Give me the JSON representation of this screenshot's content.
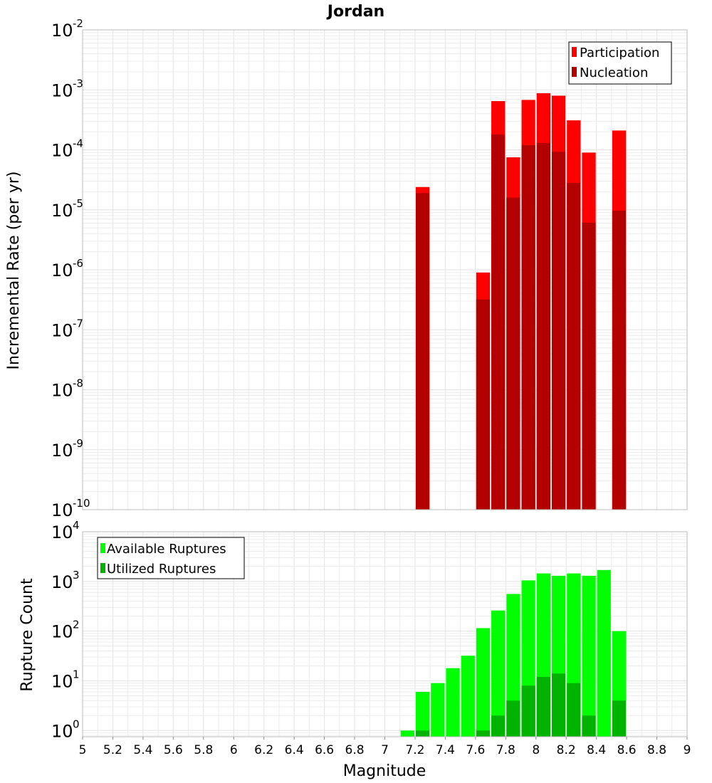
{
  "chart_data": [
    {
      "type": "bar",
      "title": "Jordan",
      "xlabel": "",
      "ylabel": "Incremental Rate (per yr)",
      "yscale": "log",
      "ylim": [
        1e-10,
        0.01
      ],
      "xlim": [
        5,
        9
      ],
      "y_tick_exponents": [
        "-2",
        "-3",
        "-4",
        "-5",
        "-6",
        "-7",
        "-8",
        "-9",
        "-10"
      ],
      "y_tick_base": "10",
      "bin_width": 0.1,
      "legend_position": "top-right",
      "series": [
        {
          "name": "Participation",
          "color": "#ff0000",
          "x": [
            7.25,
            7.65,
            7.75,
            7.85,
            7.95,
            8.05,
            8.15,
            8.25,
            8.35,
            8.55
          ],
          "values": [
            2.4e-05,
            9e-07,
            0.00065,
            7.5e-05,
            0.00068,
            0.00088,
            0.0008,
            0.00031,
            9e-05,
            0.00021
          ]
        },
        {
          "name": "Nucleation",
          "color": "#b30000",
          "x": [
            7.25,
            7.65,
            7.75,
            7.85,
            7.95,
            8.05,
            8.15,
            8.25,
            8.35,
            8.55
          ],
          "values": [
            1.9e-05,
            3.2e-07,
            0.00018,
            1.6e-05,
            0.00012,
            0.00013,
            9.3e-05,
            2.8e-05,
            6.1e-06,
            9.7e-06
          ]
        }
      ]
    },
    {
      "type": "bar",
      "xlabel": "Magnitude",
      "ylabel": "Rupture Count",
      "yscale": "log",
      "ylim": [
        0.75,
        10000.0
      ],
      "xlim": [
        5,
        9
      ],
      "y_tick_exponents": [
        "4",
        "3",
        "2",
        "1",
        "0"
      ],
      "y_tick_base": "10",
      "x_tick_labels": [
        "5",
        "5.2",
        "5.4",
        "5.6",
        "5.8",
        "6",
        "6.2",
        "6.4",
        "6.6",
        "6.8",
        "7",
        "7.2",
        "7.4",
        "7.6",
        "7.8",
        "8",
        "8.2",
        "8.4",
        "8.6",
        "8.8",
        "9"
      ],
      "bin_width": 0.1,
      "legend_position": "top-left",
      "series": [
        {
          "name": "Available Ruptures",
          "color": "#00ff00",
          "x": [
            7.15,
            7.25,
            7.35,
            7.45,
            7.55,
            7.65,
            7.75,
            7.85,
            7.95,
            8.05,
            8.15,
            8.25,
            8.35,
            8.45,
            8.55
          ],
          "values": [
            1,
            6,
            9,
            18,
            32,
            115,
            260,
            560,
            1050,
            1450,
            1300,
            1450,
            1300,
            1700,
            100
          ]
        },
        {
          "name": "Utilized Ruptures",
          "color": "#00b300",
          "x": [
            7.25,
            7.65,
            7.75,
            7.85,
            7.95,
            8.05,
            8.15,
            8.25,
            8.35,
            8.55
          ],
          "values": [
            1,
            1,
            2,
            4,
            8,
            12,
            14,
            9,
            2,
            4
          ]
        }
      ]
    }
  ]
}
